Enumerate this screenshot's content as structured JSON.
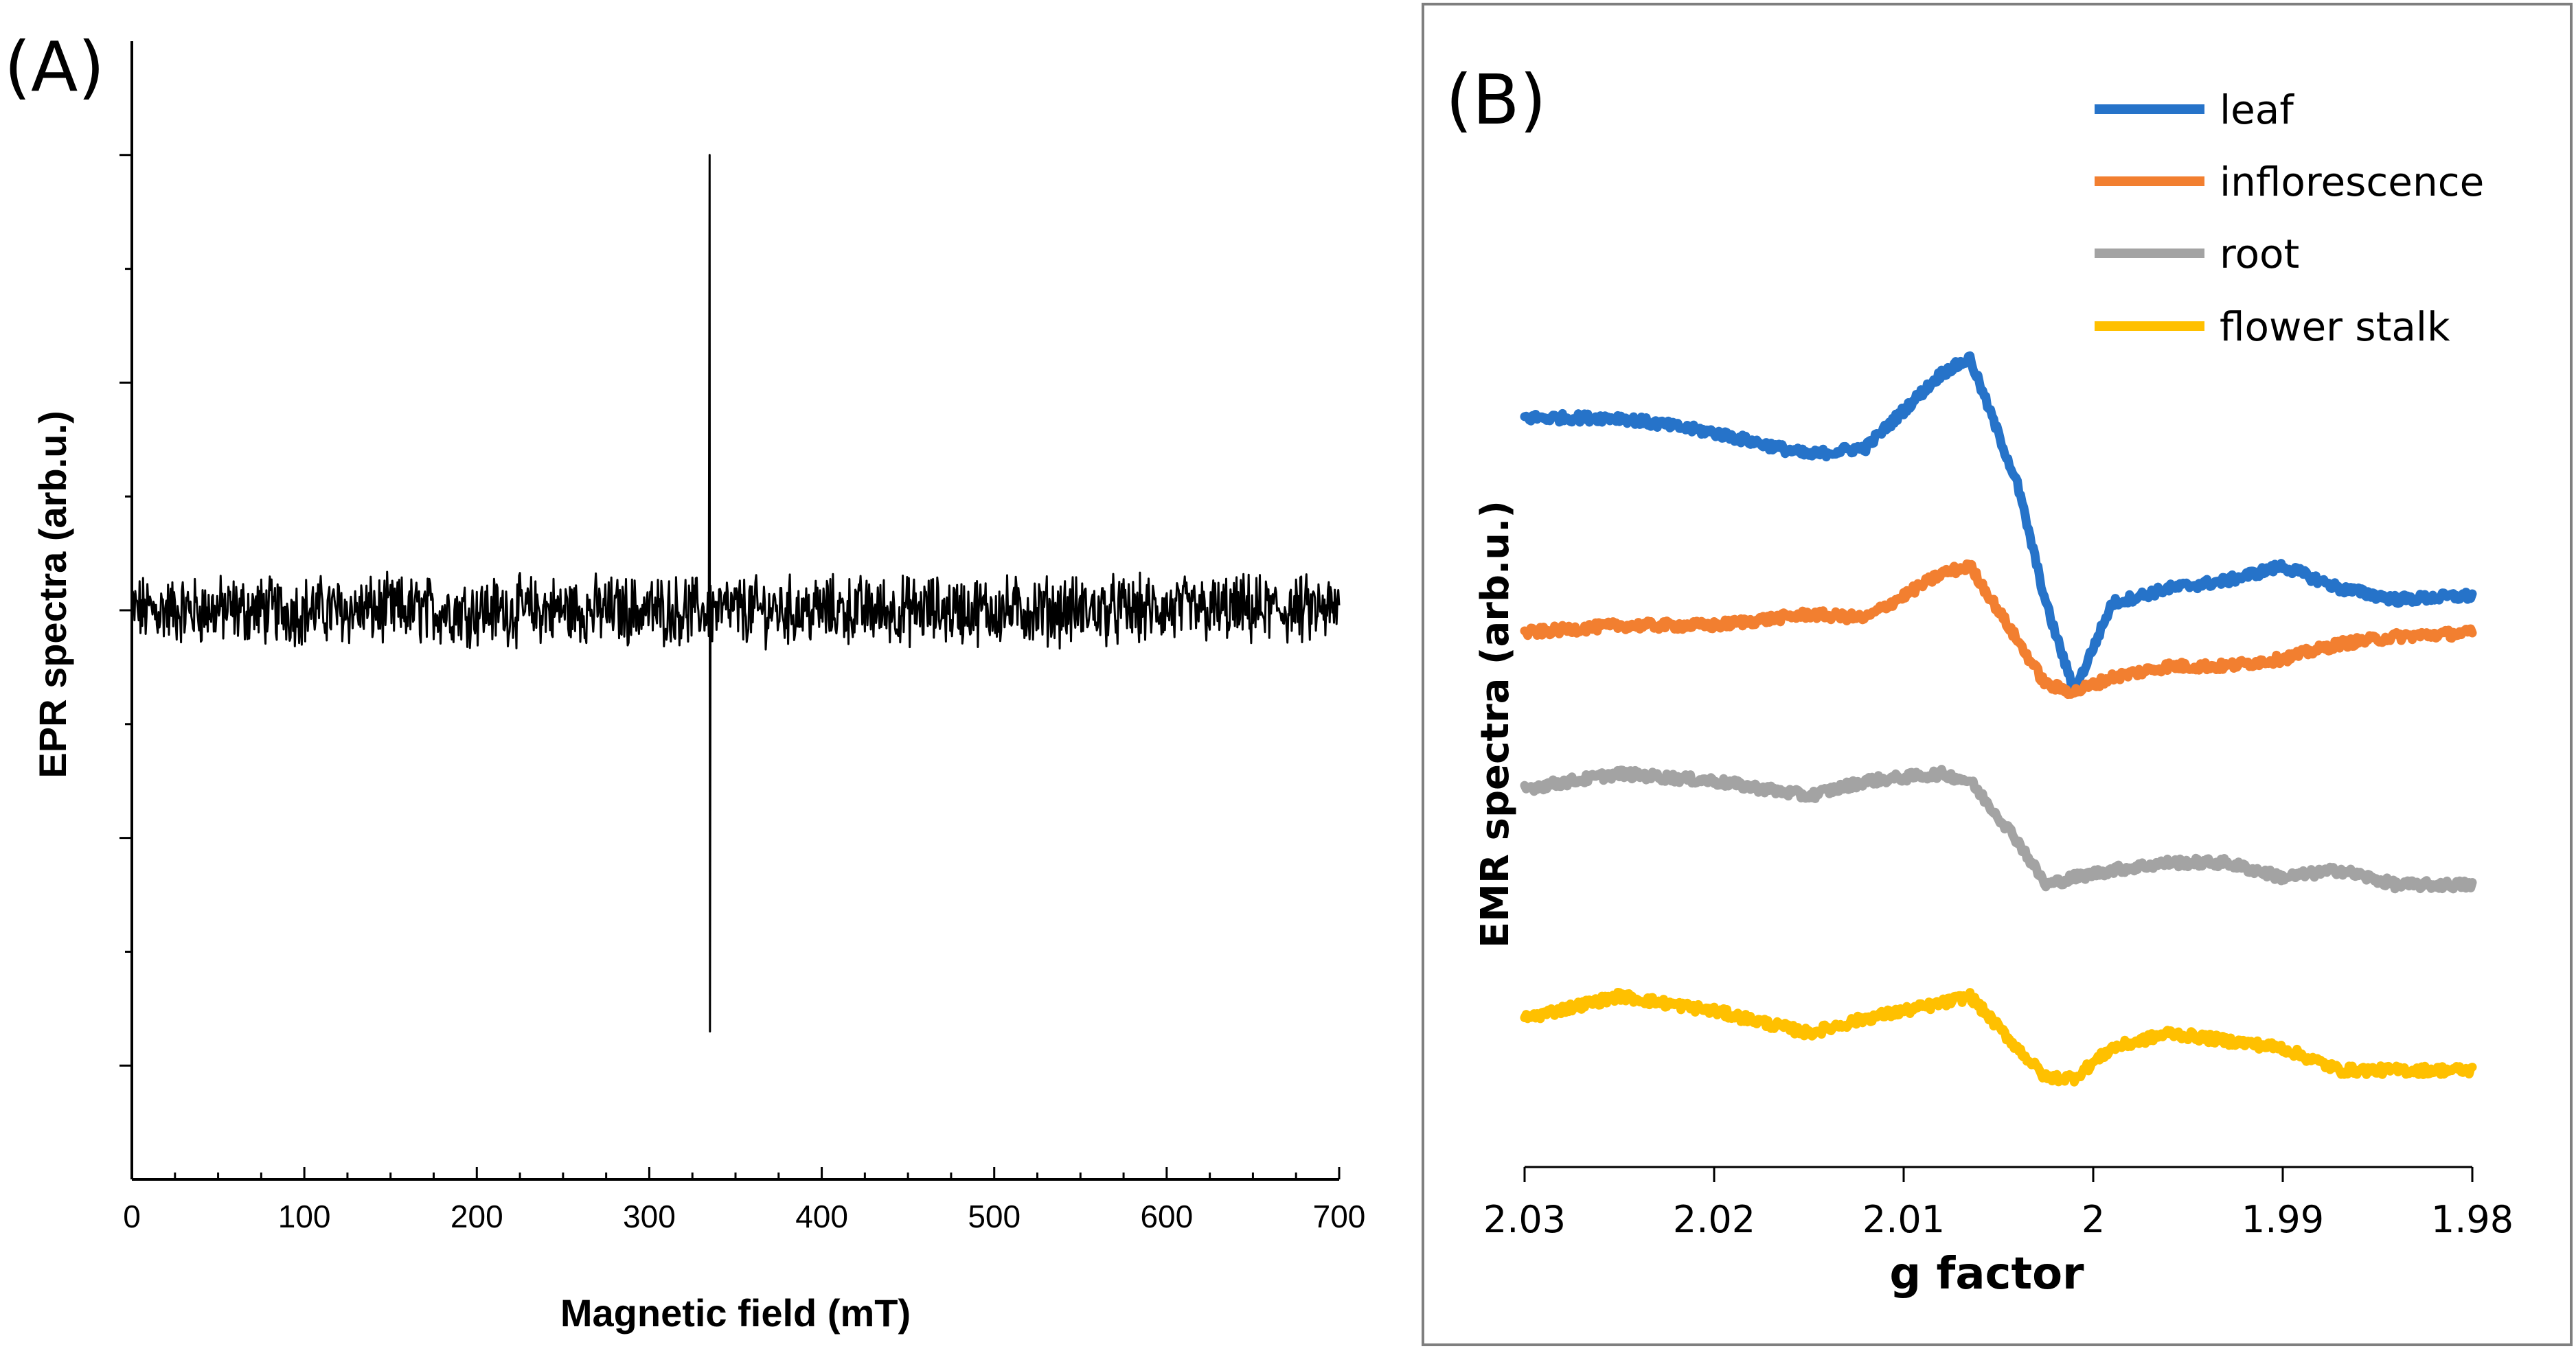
{
  "chart_data": [
    {
      "panel": "(A)",
      "type": "line",
      "xlabel": "Magnetic field (mT)",
      "ylabel": "EPR spectra (arb.u.)",
      "xlim": [
        0,
        700
      ],
      "ylim": [
        -5,
        5
      ],
      "xticks": [
        "0",
        "100",
        "200",
        "300",
        "400",
        "500",
        "600",
        "700"
      ],
      "series": [
        {
          "name": "EPR",
          "color": "#000000",
          "baseline": 0,
          "noise_amplitude": 0.25,
          "resonance_field_mT": 335,
          "resonance_peak": 4.0,
          "resonance_trough": -3.7
        }
      ]
    },
    {
      "panel": "(B)",
      "type": "line",
      "xlabel": "g factor",
      "ylabel": "EMR spectra (arb.u.)",
      "xlim": [
        2.03,
        1.98
      ],
      "xticks": [
        "2.03",
        "2.02",
        "2.01",
        "2",
        "1.99",
        "1.98"
      ],
      "x": [
        2.03,
        2.025,
        2.02,
        2.015,
        2.012,
        2.008,
        2.0065,
        2.004,
        2.0025,
        2.001,
        1.999,
        1.996,
        1.993,
        1.99,
        1.987,
        1.984,
        1.98
      ],
      "series": [
        {
          "name": "leaf",
          "color": "#2673C9",
          "values": [
            6.3,
            6.3,
            6.1,
            5.8,
            5.9,
            6.9,
            7.1,
            5.4,
            3.8,
            2.6,
            3.8,
            4.0,
            4.1,
            4.3,
            4.0,
            3.85,
            3.9
          ]
        },
        {
          "name": "inflorescence",
          "color": "#F27F30",
          "values": [
            3.4,
            3.5,
            3.5,
            3.65,
            3.6,
            4.2,
            4.3,
            3.3,
            2.7,
            2.6,
            2.8,
            2.95,
            2.95,
            3.05,
            3.25,
            3.35,
            3.4
          ]
        },
        {
          "name": "root",
          "color": "#A3A3A3",
          "values": [
            1.3,
            1.5,
            1.4,
            1.2,
            1.4,
            1.5,
            1.4,
            0.6,
            0.0,
            0.1,
            0.2,
            0.3,
            0.3,
            0.1,
            0.2,
            0.0,
            0.0
          ]
        },
        {
          "name": "flower stalk",
          "color": "#FFC000",
          "values": [
            -1.8,
            -1.5,
            -1.7,
            -2.0,
            -1.8,
            -1.6,
            -1.5,
            -2.2,
            -2.6,
            -2.6,
            -2.2,
            -2.0,
            -2.1,
            -2.2,
            -2.5,
            -2.5,
            -2.5
          ]
        }
      ],
      "legend": [
        "leaf",
        "inflorescence",
        "root",
        "flower stalk"
      ],
      "legend_position": "top-right"
    }
  ]
}
